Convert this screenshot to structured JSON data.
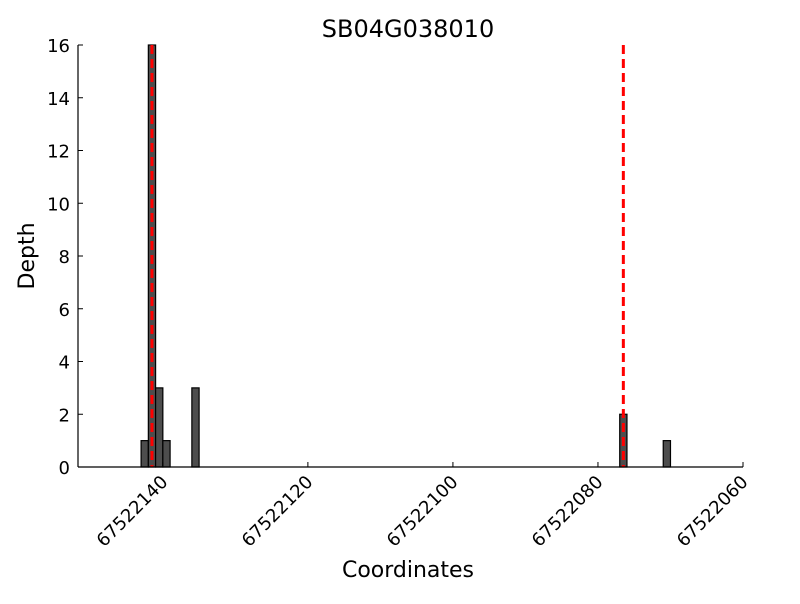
{
  "chart_data": {
    "type": "bar",
    "title": "SB04G038010",
    "xlabel": "Coordinates",
    "ylabel": "Depth",
    "xlim": [
      67522151.7,
      67522060
    ],
    "ylim": [
      0,
      16
    ],
    "x_reversed": true,
    "grid": false,
    "xticks": [
      67522140,
      67522120,
      67522100,
      67522080,
      67522060
    ],
    "yticks": [
      0,
      2,
      4,
      6,
      8,
      10,
      12,
      14,
      16
    ],
    "bar_width": 1,
    "bars": [
      {
        "x": 67522142.5,
        "value": 1
      },
      {
        "x": 67522141.5,
        "value": 16
      },
      {
        "x": 67522140.5,
        "value": 3
      },
      {
        "x": 67522139.5,
        "value": 1
      },
      {
        "x": 67522135.5,
        "value": 3
      },
      {
        "x": 67522076.5,
        "value": 2
      },
      {
        "x": 67522070.5,
        "value": 1
      }
    ],
    "vlines": [
      67522141.5,
      67522076.5
    ],
    "colors": {
      "bar": "#4d4d4d",
      "vline": "#ff0000"
    }
  }
}
